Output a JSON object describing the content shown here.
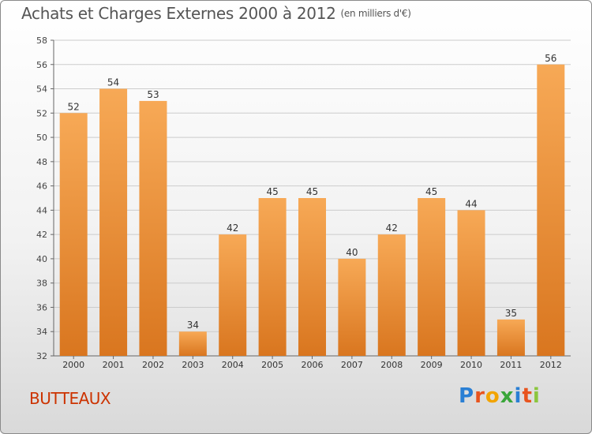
{
  "header": {
    "title": "Achats et Charges Externes 2000 à 2012",
    "unit": "(en milliers d'€)"
  },
  "footer": {
    "place": "BUTTEAUX",
    "logo_letters": [
      "P",
      "r",
      "o",
      "x",
      "i",
      "t",
      "i"
    ],
    "logo_colors": [
      "#2a7fd4",
      "#e8541e",
      "#f2a400",
      "#3aa63a",
      "#2a7fd4",
      "#e8541e",
      "#8cc63f"
    ]
  },
  "colors": {
    "bar_light": "#f7a956",
    "bar_dark": "#d9761f",
    "grid": "#cccccc"
  },
  "chart_data": {
    "type": "bar",
    "title": "Achats et Charges Externes 2000 à 2012",
    "subtitle": "(en milliers d'€)",
    "categories": [
      "2000",
      "2001",
      "2002",
      "2003",
      "2004",
      "2005",
      "2006",
      "2007",
      "2008",
      "2009",
      "2010",
      "2011",
      "2012"
    ],
    "values": [
      52,
      54,
      53,
      34,
      42,
      45,
      45,
      40,
      42,
      45,
      44,
      35,
      56
    ],
    "ylim": [
      32,
      58
    ],
    "yticks": [
      32,
      34,
      36,
      38,
      40,
      42,
      44,
      46,
      48,
      50,
      52,
      54,
      56,
      58
    ],
    "grid": true,
    "data_labels": true
  }
}
